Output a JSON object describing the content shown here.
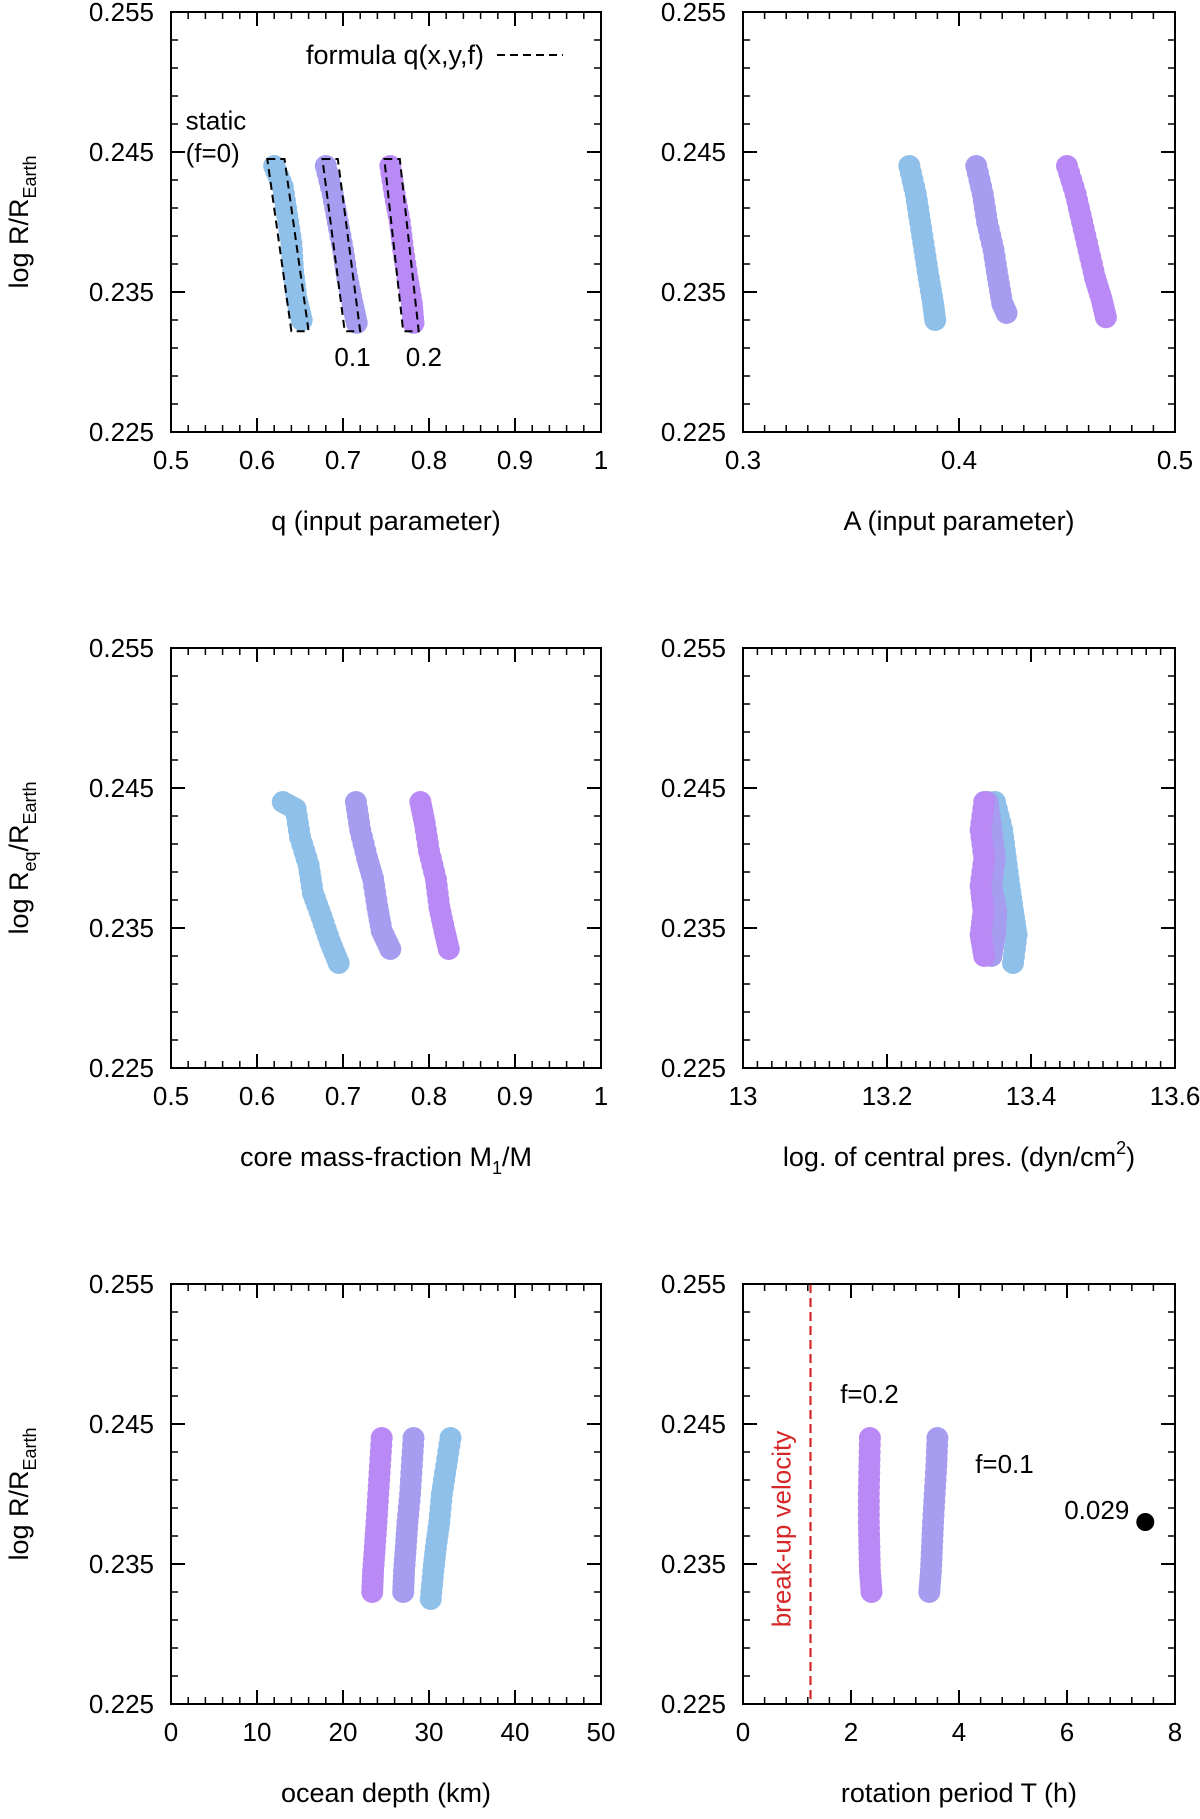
{
  "chart_data": [
    {
      "id": "q",
      "type": "scatter",
      "xlabel": "q (input parameter)",
      "ylabel": {
        "main": "log R/R",
        "sub": "Earth"
      },
      "xlim": [
        0.5,
        1
      ],
      "ylim": [
        0.225,
        0.255
      ],
      "xticks": [
        "0.5",
        "0.6",
        "0.7",
        "0.8",
        "0.9",
        "1"
      ],
      "yticks": [
        "0.225",
        "0.235",
        "0.245",
        "0.255"
      ],
      "legend": {
        "label": "formula q(x,y,f)",
        "position": "top-right",
        "style": "dashed"
      },
      "series": [
        {
          "name": "f=0",
          "color": "#8ec0ea",
          "points": [
            [
              0.62,
              0.244
            ],
            [
              0.63,
              0.2425
            ],
            [
              0.635,
              0.2405
            ],
            [
              0.64,
              0.2385
            ],
            [
              0.642,
              0.2365
            ],
            [
              0.646,
              0.2345
            ],
            [
              0.652,
              0.233
            ]
          ]
        },
        {
          "name": "f=0.1",
          "color": "#a79df0",
          "points": [
            [
              0.68,
              0.244
            ],
            [
              0.688,
              0.242
            ],
            [
              0.694,
              0.24
            ],
            [
              0.7,
              0.238
            ],
            [
              0.705,
              0.236
            ],
            [
              0.711,
              0.2342
            ],
            [
              0.716,
              0.2328
            ]
          ]
        },
        {
          "name": "f=0.2",
          "color": "#b98af6",
          "points": [
            [
              0.755,
              0.244
            ],
            [
              0.76,
              0.242
            ],
            [
              0.766,
              0.24
            ],
            [
              0.77,
              0.238
            ],
            [
              0.775,
              0.236
            ],
            [
              0.78,
              0.2342
            ],
            [
              0.782,
              0.2328
            ]
          ]
        }
      ],
      "formula_boxes": [
        [
          [
            0.612,
            0.2445
          ],
          [
            0.632,
            0.2445
          ],
          [
            0.66,
            0.2322
          ],
          [
            0.64,
            0.2322
          ]
        ],
        [
          [
            0.676,
            0.2445
          ],
          [
            0.694,
            0.2445
          ],
          [
            0.72,
            0.2322
          ],
          [
            0.702,
            0.2322
          ]
        ],
        [
          [
            0.748,
            0.2445
          ],
          [
            0.766,
            0.2445
          ],
          [
            0.788,
            0.2322
          ],
          [
            0.77,
            0.2322
          ]
        ]
      ],
      "annotations": [
        {
          "text": "static",
          "x": 0.517,
          "y": 0.2466
        },
        {
          "text": "(f=0)",
          "x": 0.517,
          "y": 0.2443
        },
        {
          "text": "0.1",
          "x": 0.69,
          "y": 0.2297
        },
        {
          "text": "0.2",
          "x": 0.773,
          "y": 0.2297
        }
      ]
    },
    {
      "id": "A",
      "type": "scatter",
      "xlabel": "A (input parameter)",
      "xlim": [
        0.3,
        0.5
      ],
      "ylim": [
        0.225,
        0.255
      ],
      "xticks": [
        "0.3",
        "0.4",
        "0.5"
      ],
      "yticks": [
        "0.225",
        "0.235",
        "0.245",
        "0.255"
      ],
      "series": [
        {
          "name": "f=0",
          "color": "#8ec0ea",
          "points": [
            [
              0.377,
              0.244
            ],
            [
              0.38,
              0.242
            ],
            [
              0.382,
              0.24
            ],
            [
              0.384,
              0.238
            ],
            [
              0.386,
              0.236
            ],
            [
              0.388,
              0.2342
            ],
            [
              0.389,
              0.233
            ]
          ]
        },
        {
          "name": "f=0.1",
          "color": "#a79df0",
          "points": [
            [
              0.408,
              0.244
            ],
            [
              0.411,
              0.242
            ],
            [
              0.413,
              0.24
            ],
            [
              0.416,
              0.238
            ],
            [
              0.418,
              0.236
            ],
            [
              0.42,
              0.2342
            ],
            [
              0.422,
              0.2335
            ]
          ]
        },
        {
          "name": "f=0.2",
          "color": "#b98af6",
          "points": [
            [
              0.45,
              0.244
            ],
            [
              0.454,
              0.242
            ],
            [
              0.457,
              0.24
            ],
            [
              0.46,
              0.238
            ],
            [
              0.463,
              0.236
            ],
            [
              0.466,
              0.2345
            ],
            [
              0.468,
              0.2332
            ]
          ]
        }
      ]
    },
    {
      "id": "cmf",
      "type": "scatter",
      "xlabel": {
        "main": "core mass-fraction M",
        "sub": "1",
        "after": "/M"
      },
      "ylabel": {
        "main": "log R",
        "sub": "eq",
        "after": "/R",
        "sub2": "Earth"
      },
      "xlim": [
        0.5,
        1
      ],
      "ylim": [
        0.225,
        0.255
      ],
      "xticks": [
        "0.5",
        "0.6",
        "0.7",
        "0.8",
        "0.9",
        "1"
      ],
      "yticks": [
        "0.225",
        "0.235",
        "0.245",
        "0.255"
      ],
      "series": [
        {
          "name": "f=0",
          "color": "#8ec0ea",
          "points": [
            [
              0.63,
              0.244
            ],
            [
              0.645,
              0.2435
            ],
            [
              0.65,
              0.2415
            ],
            [
              0.66,
              0.2395
            ],
            [
              0.665,
              0.2375
            ],
            [
              0.675,
              0.2358
            ],
            [
              0.685,
              0.234
            ],
            [
              0.695,
              0.2325
            ]
          ]
        },
        {
          "name": "f=0.1",
          "color": "#a79df0",
          "points": [
            [
              0.715,
              0.244
            ],
            [
              0.72,
              0.242
            ],
            [
              0.728,
              0.24
            ],
            [
              0.735,
              0.2385
            ],
            [
              0.74,
              0.2365
            ],
            [
              0.745,
              0.2348
            ],
            [
              0.755,
              0.2335
            ]
          ]
        },
        {
          "name": "f=0.2",
          "color": "#b98af6",
          "points": [
            [
              0.79,
              0.244
            ],
            [
              0.795,
              0.2425
            ],
            [
              0.8,
              0.2405
            ],
            [
              0.808,
              0.2385
            ],
            [
              0.812,
              0.2365
            ],
            [
              0.818,
              0.2348
            ],
            [
              0.823,
              0.2335
            ]
          ]
        }
      ]
    },
    {
      "id": "pc",
      "type": "scatter",
      "xlabel": {
        "main": "log. of central pres. (dyn/cm",
        "sup": "2",
        "after": ")"
      },
      "xlim": [
        13,
        13.6
      ],
      "ylim": [
        0.225,
        0.255
      ],
      "xticks": [
        "13",
        "13.2",
        "13.4",
        "13.6"
      ],
      "yticks": [
        "0.225",
        "0.235",
        "0.245",
        "0.255"
      ],
      "series": [
        {
          "name": "f=0",
          "color": "#8ec0ea",
          "points": [
            [
              13.35,
              0.244
            ],
            [
              13.36,
              0.242
            ],
            [
              13.365,
              0.24
            ],
            [
              13.37,
              0.238
            ],
            [
              13.375,
              0.2362
            ],
            [
              13.38,
              0.2345
            ],
            [
              13.375,
              0.2325
            ]
          ]
        },
        {
          "name": "f=0.1",
          "color": "#a79df0",
          "points": [
            [
              13.34,
              0.244
            ],
            [
              13.345,
              0.242
            ],
            [
              13.35,
              0.24
            ],
            [
              13.345,
              0.238
            ],
            [
              13.352,
              0.2362
            ],
            [
              13.35,
              0.2345
            ],
            [
              13.345,
              0.233
            ]
          ]
        },
        {
          "name": "f=0.2",
          "color": "#b98af6",
          "points": [
            [
              13.335,
              0.244
            ],
            [
              13.33,
              0.242
            ],
            [
              13.335,
              0.24
            ],
            [
              13.33,
              0.238
            ],
            [
              13.334,
              0.2362
            ],
            [
              13.33,
              0.2345
            ],
            [
              13.335,
              0.233
            ]
          ]
        }
      ]
    },
    {
      "id": "ocean",
      "type": "scatter",
      "xlabel": "ocean depth (km)",
      "ylabel": {
        "main": "log R/R",
        "sub": "Earth"
      },
      "xlim": [
        0,
        50
      ],
      "ylim": [
        0.225,
        0.255
      ],
      "xticks": [
        "0",
        "10",
        "20",
        "30",
        "40",
        "50"
      ],
      "yticks": [
        "0.225",
        "0.235",
        "0.245",
        "0.255"
      ],
      "series": [
        {
          "name": "f=0",
          "color": "#8ec0ea",
          "points": [
            [
              32.5,
              0.244
            ],
            [
              32,
              0.242
            ],
            [
              31.5,
              0.24
            ],
            [
              31.2,
              0.238
            ],
            [
              30.8,
              0.2362
            ],
            [
              30.5,
              0.2345
            ],
            [
              30.2,
              0.2325
            ]
          ]
        },
        {
          "name": "f=0.1",
          "color": "#a79df0",
          "points": [
            [
              28.2,
              0.244
            ],
            [
              28,
              0.242
            ],
            [
              27.8,
              0.24
            ],
            [
              27.5,
              0.238
            ],
            [
              27.3,
              0.2362
            ],
            [
              27.1,
              0.2345
            ],
            [
              27,
              0.233
            ]
          ]
        },
        {
          "name": "f=0.2",
          "color": "#b98af6",
          "points": [
            [
              24.5,
              0.244
            ],
            [
              24.3,
              0.242
            ],
            [
              24.1,
              0.24
            ],
            [
              23.9,
              0.238
            ],
            [
              23.7,
              0.2362
            ],
            [
              23.5,
              0.2345
            ],
            [
              23.4,
              0.233
            ]
          ]
        }
      ]
    },
    {
      "id": "T",
      "type": "scatter",
      "xlabel": "rotation period T (h)",
      "xlim": [
        0,
        8
      ],
      "ylim": [
        0.225,
        0.255
      ],
      "xticks": [
        "0",
        "2",
        "4",
        "6",
        "8"
      ],
      "yticks": [
        "0.225",
        "0.235",
        "0.245",
        "0.255"
      ],
      "vline": {
        "x": 1.25,
        "color": "#d62728",
        "label": "break-up velocity"
      },
      "static_point": {
        "x": 7.45,
        "y": 0.238,
        "label": "0.029",
        "color": "#000000"
      },
      "series": [
        {
          "name": "f=0.1",
          "color": "#a79df0",
          "points": [
            [
              3.6,
              0.244
            ],
            [
              3.58,
              0.242
            ],
            [
              3.55,
              0.24
            ],
            [
              3.52,
              0.238
            ],
            [
              3.5,
              0.2362
            ],
            [
              3.48,
              0.2345
            ],
            [
              3.45,
              0.233
            ]
          ]
        },
        {
          "name": "f=0.2",
          "color": "#b98af6",
          "points": [
            [
              2.35,
              0.244
            ],
            [
              2.34,
              0.242
            ],
            [
              2.33,
              0.24
            ],
            [
              2.33,
              0.238
            ],
            [
              2.34,
              0.2362
            ],
            [
              2.35,
              0.2345
            ],
            [
              2.38,
              0.233
            ]
          ]
        }
      ],
      "annotations": [
        {
          "text": "f=0.2",
          "x": 1.8,
          "y": 0.2465
        },
        {
          "text": "f=0.1",
          "x": 4.3,
          "y": 0.2415
        }
      ]
    }
  ]
}
